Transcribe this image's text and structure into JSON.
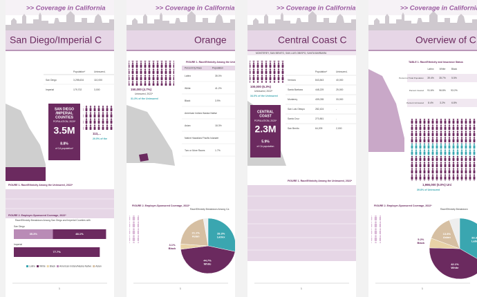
{
  "pages": [
    {
      "header": ">> Coverage in California",
      "title": "San Diego/Imperial C",
      "table": {
        "columns": [
          "Population*",
          "Uninsured,"
        ],
        "rows": [
          [
            "San Diego",
            "3,298,634",
            "110,000"
          ],
          [
            "Imperial",
            "179,702",
            "3,000"
          ]
        ]
      },
      "callout": {
        "name": [
          "SAN DIEGO",
          "/IMPERIAL",
          "COUNTIES"
        ],
        "caption": "POPULATION, 2020*",
        "value": "3.5M",
        "share": "8.8%",
        "share_caption": "of CA population*"
      },
      "uninsured": "113,...",
      "uninsured_note": "20.5% of the",
      "figure1": "FIGURE 1. Race/Ethnicity Among the Uninsured, 2022*",
      "figure2": "FIGURE 2. Employer-Sponsored Coverage, 2022*",
      "figure2_subtitle": "Race/Ethnicity Breakdown Among San Diego and Imperial Counties with",
      "bars": [
        {
          "name": "San Diego",
          "segments": [
            {
              "value": 35.3,
              "label": "35.3%",
              "color": "#b98bb6"
            },
            {
              "value": 48.1,
              "label": "48.1%",
              "color": "#6b2a5f"
            }
          ]
        },
        {
          "name": "Imperial",
          "segments": [
            {
              "value": 77.7,
              "label": "77.7%",
              "color": "#6b2a5f"
            }
          ]
        }
      ],
      "legend": [
        "Latinx",
        "White",
        "Black",
        "American Indian/Alaska Native",
        "Asian"
      ],
      "page_number": "1"
    },
    {
      "header": ">> Coverage in California",
      "title": "Orange",
      "uninsured": "150,000 (4.7%)",
      "uninsured_caption": "Uninsured, 2022*",
      "uninsured_note": "31.3% of the Uninsured",
      "figure1": "FIGURE 1. Race/Ethnicity Among the Uninsured, 2022*",
      "table": {
        "columns": [
          "Percent by Race",
          "Population"
        ],
        "rows": [
          [
            "Latinx",
            "35.0%"
          ],
          [
            "White",
            "41.2%"
          ],
          [
            "Black",
            "3.9%"
          ],
          [
            "American Indian/ Alaska Native",
            "-"
          ],
          [
            "Asian",
            "18.3%"
          ],
          [
            "Native Hawaiian/ Pacific Islander",
            "-"
          ],
          [
            "Two or More Races",
            "1.7%"
          ]
        ]
      },
      "figure2": "FIGURE 2. Employer-Sponsored Coverage, 2022*",
      "figure2_subtitle": "Race/Ethnicity Breakdown Among Ca",
      "pie": {
        "slices": [
          {
            "name": "Latinx",
            "value": 28.3,
            "label": "28.3%",
            "color": "#3aa6b0"
          },
          {
            "name": "White",
            "value": 44.7,
            "label": "44.7%",
            "color": "#6b2a5f"
          },
          {
            "name": "Black",
            "value": 3.1,
            "label": "3.1%",
            "color": "#e8d2a6"
          },
          {
            "name": "Asian",
            "value": 21.1,
            "label": "21.1%",
            "color": "#d6bfa2"
          }
        ]
      },
      "page_number": "1"
    },
    {
      "header": ">> Coverage in California",
      "title": "Central Coast C",
      "subtitle": "MONTEREY, SAN BENITO, SAN LUIS OBISPO, SANTA BARBARA",
      "uninsured": "100,000 (6.3%)",
      "uninsured_caption": "Uninsured, 2022*",
      "uninsured_note": "34.0% of the Uninsured",
      "table": {
        "columns": [
          "Population*",
          "Uninsured,"
        ],
        "rows": [
          [
            "Ventura",
            "843,843",
            "40,000"
          ],
          [
            "Santa Barbara",
            "448,229",
            "25,000"
          ],
          [
            "Monterey",
            "439,035",
            "33,000"
          ],
          [
            "San Luis Obispo",
            "282,424",
            "-"
          ],
          [
            "Santa Cruz",
            "270,861",
            "-"
          ],
          [
            "San Benito",
            "64,209",
            "2,000"
          ]
        ]
      },
      "callout": {
        "name": [
          "CENTRAL",
          "COAST"
        ],
        "caption": "POPULATION, 2020*",
        "value": "2.3M",
        "share": "5.9%",
        "share_caption": "of CA population"
      },
      "figure1": "FIGURE 1. Race/Ethnicity Among the Uninsured, 2022*",
      "page_number": "1"
    },
    {
      "header": ">> Coverage in California",
      "title": "Overview of C",
      "table_title": "TABLE 1. Race/Ethnicity and Insurance Status",
      "table": {
        "columns": [
          "Latinx",
          "White",
          "Black"
        ],
        "rows": [
          [
            "Percent of Total Population",
            "39.4%",
            "35.7%",
            "5.5%"
          ],
          [
            "Percent Insured",
            "91.6%",
            "96.8%",
            "93.2%"
          ],
          [
            "Percent Uninsured",
            "8.4%",
            "3.2%",
            "6.8%"
          ]
        ]
      },
      "uninsured": "1,966,000 (5.0%) Uni",
      "uninsured_note": "39.8% of Uninsured",
      "figure2": "FIGURE 2. Employer-Sponsored Coverage, 2022*",
      "figure2_subtitle": "Race/Ethnicity Breakdown",
      "pie": {
        "slices": [
          {
            "name": "Latinx",
            "value": 33.3,
            "label": "33.3%",
            "color": "#3aa6b0"
          },
          {
            "name": "White",
            "value": 42.1,
            "label": "42.1%",
            "color": "#6b2a5f"
          },
          {
            "name": "Black",
            "value": 5.2,
            "label": "5.2%",
            "color": "#e8d2a6"
          },
          {
            "name": "Asian",
            "value": 13.8,
            "label": "13.8%",
            "color": "#d6bfa2"
          }
        ]
      },
      "page_number": "1"
    }
  ]
}
